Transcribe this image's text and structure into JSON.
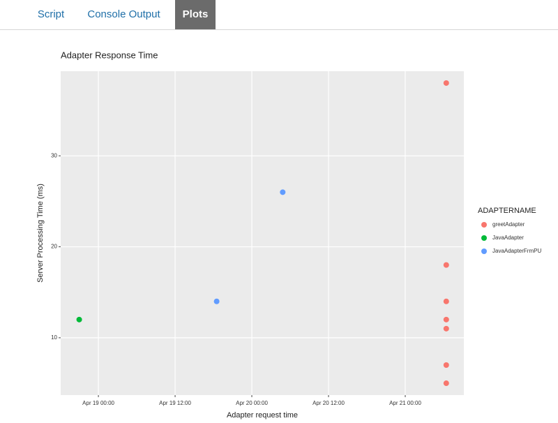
{
  "tabs": [
    "Script",
    "Console Output",
    "Plots"
  ],
  "chart_data": {
    "type": "scatter",
    "title": "Adapter Response Time",
    "x_label": "Adapter request time",
    "y_label": "Server Processing Time (ms)",
    "legend_title": "ADAPTERNAME",
    "legend": "right",
    "grid": true,
    "xlim": [
      "Apr 18 18:06",
      "Apr 21 09:10"
    ],
    "xticks": [
      "Apr 19 00:00",
      "Apr 19 12:00",
      "Apr 20 00:00",
      "Apr 20 12:00",
      "Apr 21 00:00"
    ],
    "ylim": [
      3.7,
      39.3
    ],
    "yticks": [
      10,
      20,
      30
    ],
    "series": [
      {
        "name": "greetAdapter",
        "color": "#F8766D",
        "x": [
          "Apr 21 06:25",
          "Apr 21 06:25",
          "Apr 21 06:25",
          "Apr 21 06:25",
          "Apr 21 06:25",
          "Apr 21 06:25",
          "Apr 21 06:25"
        ],
        "values": [
          38,
          18,
          14,
          12,
          11,
          7,
          5
        ]
      },
      {
        "name": "JavaAdapter",
        "color": "#00BA38",
        "x": [
          "Apr 18 21:00"
        ],
        "values": [
          12
        ]
      },
      {
        "name": "JavaAdapterFrmPU",
        "color": "#619CFF",
        "x": [
          "Apr 19 18:30",
          "Apr 20 04:50"
        ],
        "values": [
          14,
          26
        ]
      }
    ]
  }
}
